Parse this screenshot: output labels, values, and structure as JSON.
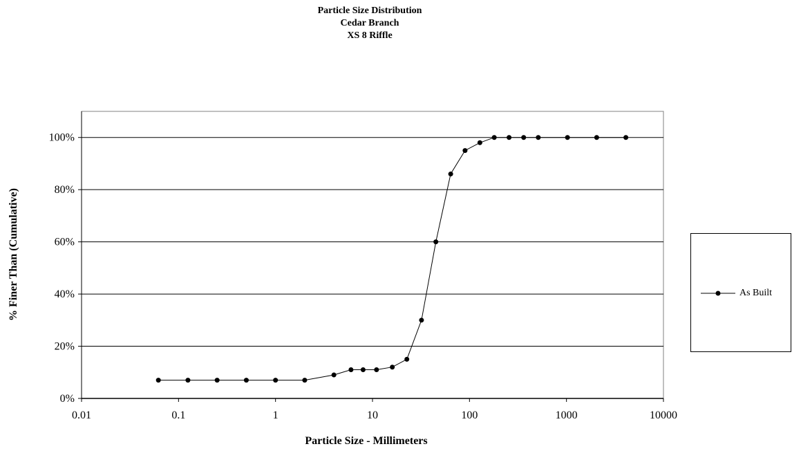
{
  "chart_data": {
    "type": "scatter",
    "title": [
      "Particle Size Distribution",
      "Cedar Branch",
      "XS 8 Riffle"
    ],
    "xlabel": "Particle Size - Millimeters",
    "ylabel": "% Finer Than (Cumulative)",
    "xscale": "log",
    "xlim": [
      0.01,
      10000
    ],
    "ylim": [
      0,
      1.1
    ],
    "x_ticks": [
      0.01,
      0.1,
      1,
      10,
      100,
      1000,
      10000
    ],
    "x_tick_labels": [
      "0.01",
      "0.1",
      "1",
      "10",
      "100",
      "1000",
      "10000"
    ],
    "y_ticks": [
      0,
      0.2,
      0.4,
      0.6,
      0.8,
      1.0
    ],
    "y_tick_labels": [
      "0%",
      "20%",
      "40%",
      "60%",
      "80%",
      "100%"
    ],
    "grid": "horizontal",
    "legend": "right",
    "series": [
      {
        "name": "As Built",
        "color": "#000000",
        "marker": "circle",
        "x": [
          0.062,
          0.125,
          0.25,
          0.5,
          1,
          2,
          4,
          6,
          8,
          11,
          16,
          22.6,
          32,
          45,
          64,
          90,
          128,
          180,
          256,
          362,
          512,
          1024,
          2048,
          4096
        ],
        "y": [
          0.07,
          0.07,
          0.07,
          0.07,
          0.07,
          0.07,
          0.09,
          0.11,
          0.11,
          0.11,
          0.12,
          0.15,
          0.3,
          0.6,
          0.86,
          0.95,
          0.98,
          1.0,
          1.0,
          1.0,
          1.0,
          1.0,
          1.0,
          1.0
        ]
      }
    ]
  }
}
